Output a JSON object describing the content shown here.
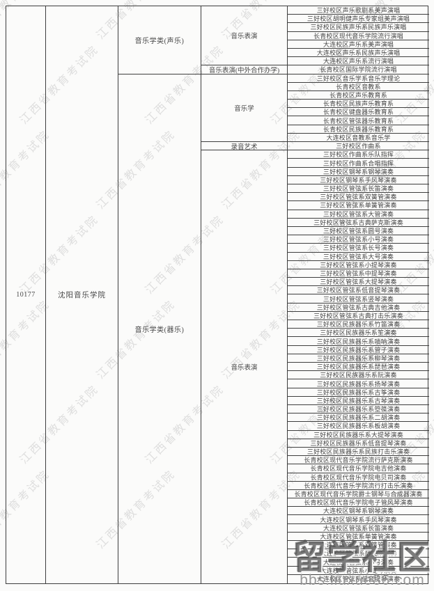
{
  "table": {
    "code": "10177",
    "school": "沈阳音乐学院",
    "categories": [
      {
        "label": "音乐学类(声乐)",
        "majors": [
          {
            "label": "音乐表演",
            "programs": [
              "三好校区声乐歌剧系美声演唱",
              "三好校区胡明健声乐专家组美声演唱",
              "三好校区民族声乐系民族声乐演唱",
              "长青校区现代音乐学院流行演唱",
              "大连校区声乐系美声演唱",
              "大连校区声乐系民族声乐演唱",
              "大连校区声乐系流行演唱"
            ]
          },
          {
            "label": "音乐表演(中外合作办学)",
            "programs": [
              "长青校区国际学院流行演唱"
            ]
          }
        ]
      },
      {
        "label": "音乐学类(器乐)",
        "majors": [
          {
            "label": "音乐学",
            "programs": [
              "三好校区音乐学系音乐学理论",
              "长青校区音教系",
              "长青校区声乐教育系",
              "长青校区民族声乐教育系",
              "长青校区键盘器乐教育系",
              "长青校区管弦器乐教育系",
              "长青校区民族器乐教育系",
              "大连校区音教系音乐学"
            ]
          },
          {
            "label": "录音艺术",
            "programs": [
              "三好校区作曲系"
            ]
          },
          {
            "label": "音乐表演",
            "programs": [
              "三好校区作曲系乐队指挥",
              "三好校区作曲系合唱指挥",
              "三好校区钢琴系钢琴演奏",
              "三好校区钢琴系手风琴演奏",
              "三好校区管弦系长笛演奏",
              "三好校区管弦系双簧管演奏",
              "三好校区管弦系单簧管演奏",
              "三好校区管弦系大管演奏",
              "三好校区管弦系古典萨克斯演奏",
              "三好校区管弦系圆号演奏",
              "三好校区管弦系小号演奏",
              "三好校区管弦系长号演奏",
              "三好校区管弦系大号演奏",
              "三好校区管弦系小提琴演奏",
              "三好校区管弦系中提琴演奏",
              "三好校区管弦系大提琴演奏",
              "三好校区管弦系低音提琴演奏",
              "三好校区管弦系竖琴演奏",
              "三好校区管弦系古典吉他演奏",
              "三好校区管弦系古典打击乐演奏",
              "三好校区民族器乐系竹笛演奏",
              "三好校区民族器乐系笙演奏",
              "三好校区民族器乐系唢呐演奏",
              "三好校区民族器乐系管子演奏",
              "三好校区民族器乐系柳琴演奏",
              "三好校区民族器乐系琵琶演奏",
              "三好校区民族器乐系阮演奏",
              "三好校区民族器乐系扬琴演奏",
              "三好校区民族器乐系古筝演奏",
              "三好校区民族器乐系古琴演奏",
              "三好校区民族器乐系箜篌演奏",
              "三好校区民族器乐系二胡演奏",
              "三好校区民族器乐系板胡演奏",
              "三好校区民族器乐系大提琴演奏",
              "三好校区民族器乐系低音提琴演奏",
              "三好校区民族器乐系民族打击乐演奏",
              "长青校区现代音乐学院流行萨克斯演奏",
              "长青校区现代音乐学院电吉他演奏",
              "长青校区现代音乐学院电贝司演奏",
              "长青校区现代音乐学院流行打击乐演奏",
              "长青校区现代音乐学院爵士钢琴与合成器演奏",
              "长青校区现代音乐学院电子管风琴演奏",
              "大连校区钢琴系钢琴演奏",
              "大连校区钢琴系手风琴演奏",
              "大连校区管弦系长笛演奏",
              "大连校区管弦系单簧管演奏",
              "大连校区管弦系双簧管演奏",
              "大连校区管弦系萨克斯演奏",
              "大连校区管弦系小号演奏",
              "大连校区管弦系小提琴演奏",
              "大连校区管弦系低音提琴演奏"
            ]
          }
        ]
      }
    ]
  },
  "watermarks": {
    "diagonal_text": "江西省教育考试院",
    "footer_logo": "留学社区",
    "footer_url": "bbs.liuxue86.com"
  },
  "colors": {
    "border": "#3d3d3d",
    "text": "#454545",
    "watermark_gray": "#6e6e6e",
    "background": "#fbfbfa"
  }
}
